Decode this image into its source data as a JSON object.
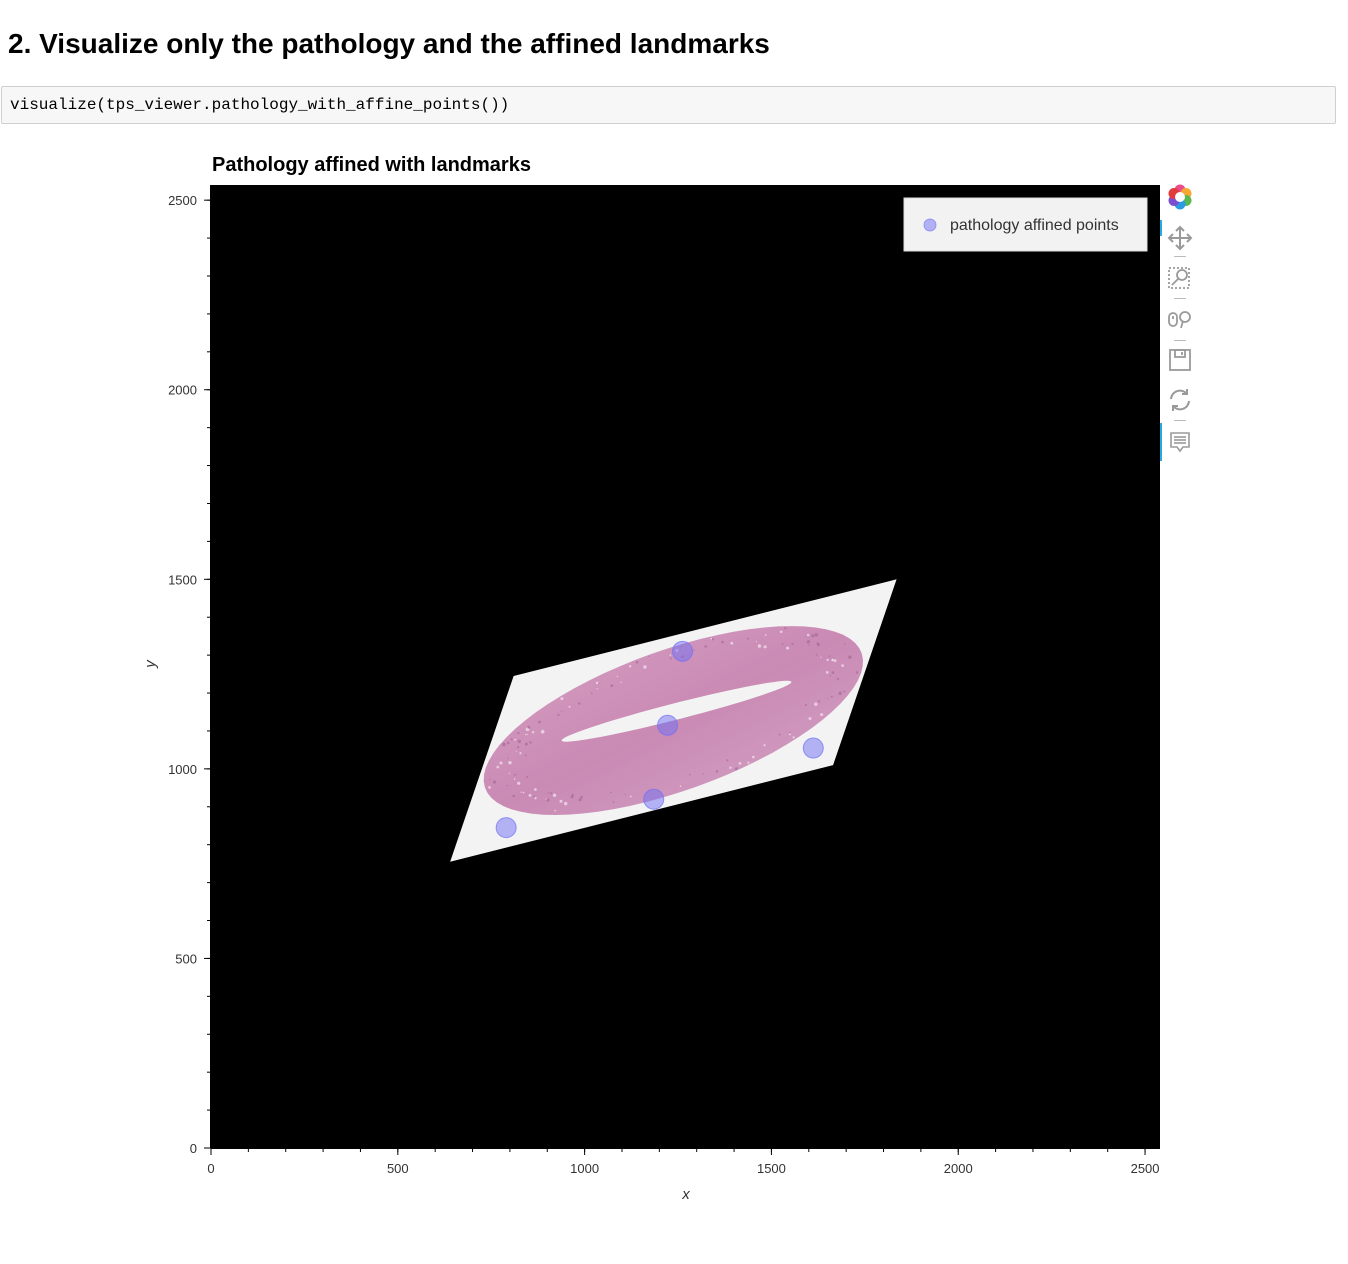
{
  "heading": "2. Visualize only the pathology and the affined landmarks",
  "code": "visualize(tps_viewer.pathology_with_affine_points())",
  "chart_data": {
    "type": "scatter",
    "title": "Pathology affined with landmarks",
    "xlabel": "x",
    "ylabel": "y",
    "xlim": [
      0,
      2540
    ],
    "ylim": [
      0,
      2540
    ],
    "x_ticks": [
      0,
      500,
      1000,
      1500,
      2000,
      2500
    ],
    "y_ticks": [
      0,
      500,
      1000,
      1500,
      2000,
      2500
    ],
    "x_tick_labels": [
      "0",
      "500",
      "1000",
      "1500",
      "2000",
      "2500"
    ],
    "y_tick_labels": [
      "0",
      "500",
      "1000",
      "1500",
      "2000",
      "2500"
    ],
    "grid": false,
    "background_color": "#000000",
    "legend_placement": "top-right",
    "image_corners": [
      [
        640,
        755
      ],
      [
        810,
        1245
      ],
      [
        1835,
        1500
      ],
      [
        1665,
        1010
      ]
    ],
    "series": [
      {
        "name": "pathology affined points",
        "color": "#6f6ff5",
        "x": [
          1262,
          1222,
          1612,
          1185,
          790
        ],
        "y": [
          1310,
          1115,
          1055,
          920,
          845
        ]
      }
    ]
  },
  "toolbar": {
    "icons": [
      "bokeh-logo-icon",
      "pan-icon",
      "box-zoom-icon",
      "wheel-zoom-icon",
      "save-icon",
      "reset-icon",
      "hover-icon"
    ]
  }
}
